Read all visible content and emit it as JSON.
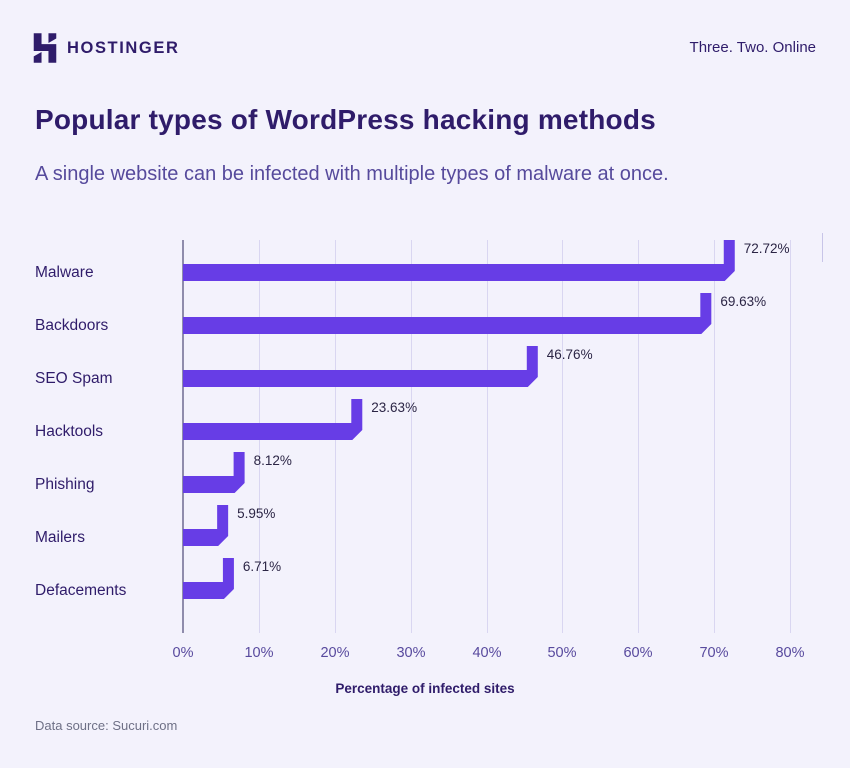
{
  "header": {
    "brand": "HOSTINGER",
    "tagline": "Three. Two. Online"
  },
  "title": "Popular types of WordPress hacking methods",
  "subtitle": "A single website can be infected with multiple types of malware at once.",
  "footer": {
    "source": "Data source: Sucuri.com"
  },
  "colors": {
    "background": "#f3f2fc",
    "bar": "#673de6",
    "brand_dark": "#2f1c6a",
    "subtitle": "#564a9c",
    "gridline": "#d9d6f1",
    "axis_line": "#8f8cac",
    "tick_text": "#584a9e",
    "value_text": "#2b2545",
    "source_text": "#6e7086"
  },
  "chart_data": {
    "type": "bar",
    "orientation": "horizontal",
    "title": "Popular types of WordPress hacking methods",
    "categories": [
      "Malware",
      "Backdoors",
      "SEO Spam",
      "Hacktools",
      "Phishing",
      "Mailers",
      "Defacements"
    ],
    "values": [
      72.72,
      69.63,
      46.76,
      23.63,
      8.12,
      5.95,
      6.71
    ],
    "value_labels": [
      "72.72%",
      "69.63%",
      "46.76%",
      "23.63%",
      "8.12%",
      "5.95%",
      "6.71%"
    ],
    "xlabel": "Percentage of infected sites",
    "ylabel": "",
    "x_ticks": [
      "0%",
      "10%",
      "20%",
      "30%",
      "40%",
      "50%",
      "60%",
      "70%",
      "80%"
    ],
    "xlim": [
      0,
      80
    ],
    "grid": true,
    "legend": false,
    "bar_color": "#673de6"
  }
}
